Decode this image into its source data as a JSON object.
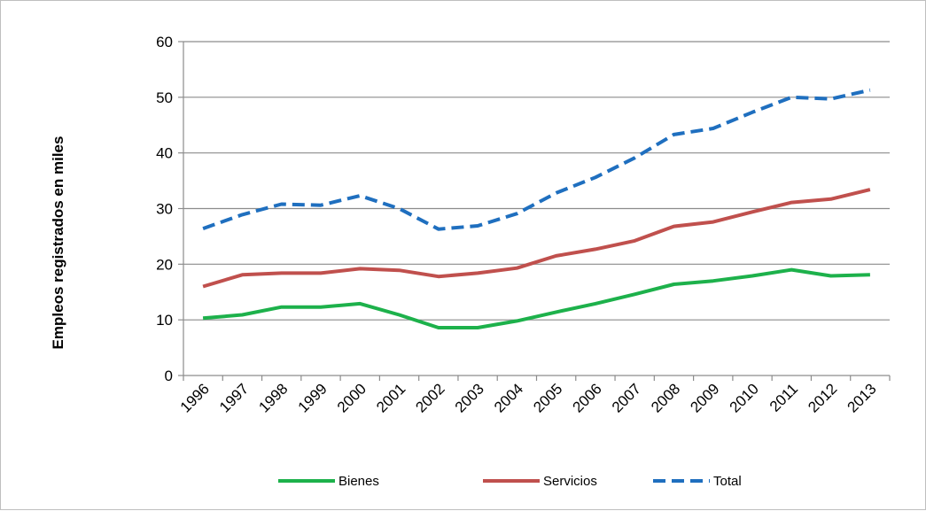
{
  "chart_data": {
    "type": "line",
    "title": "",
    "xlabel": "",
    "ylabel": "Empleos registrados en miles",
    "ylim": [
      0,
      60
    ],
    "yticks": [
      0,
      10,
      20,
      30,
      40,
      50,
      60
    ],
    "grid": true,
    "legend_position": "bottom",
    "categories": [
      "1996",
      "1997",
      "1998",
      "1999",
      "2000",
      "2001",
      "2002",
      "2003",
      "2004",
      "2005",
      "2006",
      "2007",
      "2008",
      "2009",
      "2010",
      "2011",
      "2012",
      "2013"
    ],
    "series": [
      {
        "name": "Bienes",
        "color": "#1db14b",
        "dash": "solid",
        "values": [
          10.3,
          10.9,
          12.3,
          12.3,
          12.9,
          10.9,
          8.6,
          8.6,
          9.8,
          11.4,
          12.9,
          14.6,
          16.4,
          17.0,
          17.9,
          19.0,
          17.9,
          18.1
        ]
      },
      {
        "name": "Servicios",
        "color": "#c0504d",
        "dash": "solid",
        "values": [
          16.0,
          18.1,
          18.4,
          18.4,
          19.2,
          18.9,
          17.8,
          18.4,
          19.3,
          21.5,
          22.7,
          24.2,
          26.8,
          27.6,
          29.4,
          31.1,
          31.7,
          33.4
        ]
      },
      {
        "name": "Total",
        "color": "#1f6fbf",
        "dash": "dashed",
        "values": [
          26.4,
          28.9,
          30.8,
          30.6,
          32.3,
          30.0,
          26.3,
          26.9,
          29.1,
          32.8,
          35.6,
          39.1,
          43.3,
          44.4,
          47.3,
          50.0,
          49.7,
          51.3
        ]
      }
    ]
  }
}
